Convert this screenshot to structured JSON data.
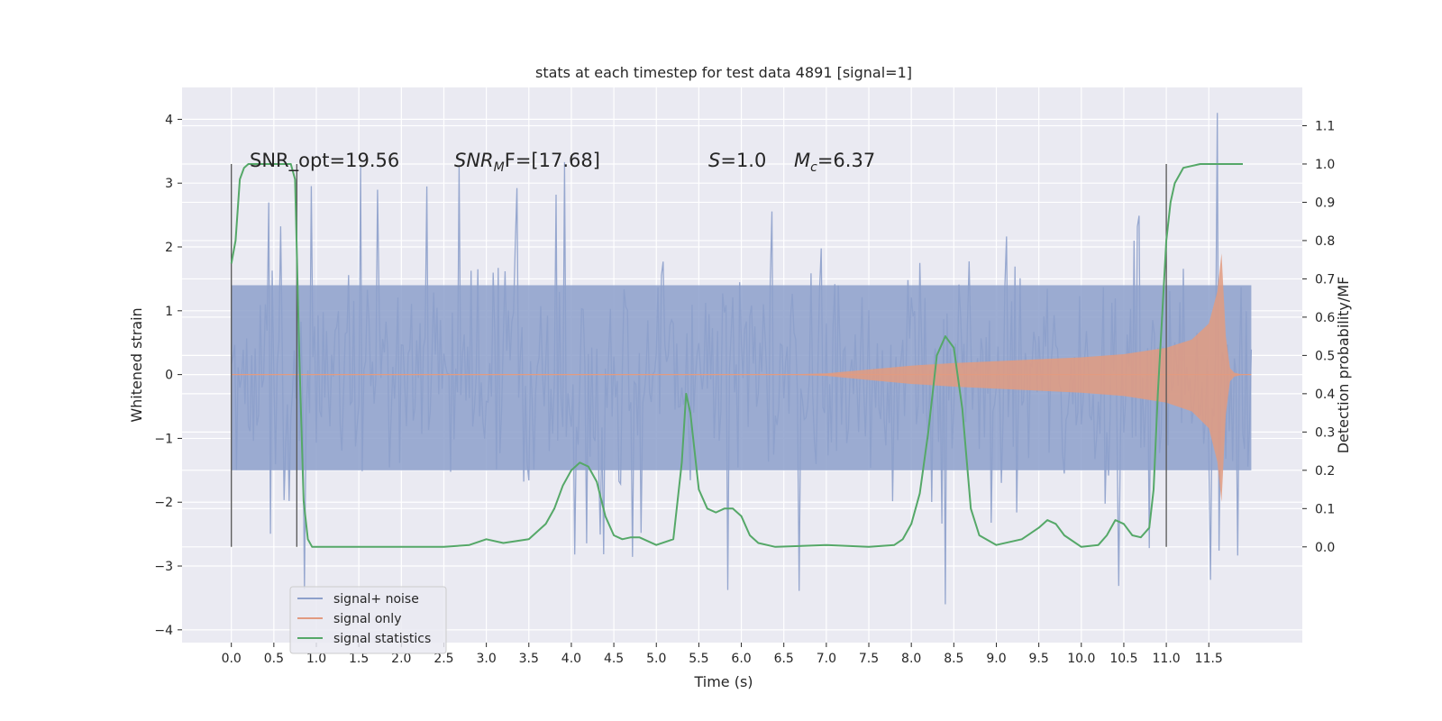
{
  "chart_data": {
    "type": "line",
    "title": "stats at each timestep for test data 4891 [signal=1]",
    "xlabel": "Time (s)",
    "ylabel_left": "Whitened strain",
    "ylabel_right": "Detection probability/MF",
    "xlim": [
      -0.58,
      12.6
    ],
    "ylim_left": [
      -4.2,
      4.5
    ],
    "ylim_right": [
      -0.25,
      1.2
    ],
    "x_ticks": [
      "0.0",
      "0.5",
      "1.0",
      "1.5",
      "2.0",
      "2.5",
      "3.0",
      "3.5",
      "4.0",
      "4.5",
      "5.0",
      "5.5",
      "6.0",
      "6.5",
      "7.0",
      "7.5",
      "8.0",
      "8.5",
      "9.0",
      "9.5",
      "10.0",
      "10.5",
      "11.0",
      "11.5"
    ],
    "y_left_ticks": [
      "−4",
      "−3",
      "−2",
      "−1",
      "0",
      "1",
      "2",
      "3",
      "4"
    ],
    "y_right_ticks": [
      "0.0",
      "0.1",
      "0.2",
      "0.3",
      "0.4",
      "0.5",
      "0.6",
      "0.7",
      "0.8",
      "0.9",
      "1.0",
      "1.1"
    ],
    "grid": true,
    "legend_position": "lower-left",
    "annotations": {
      "snr_opt": "SNR_opt=19.56",
      "snr_mf_symbol": "SNR",
      "snr_mf_sub": "M",
      "snr_mf_rest": "F=[17.68]",
      "s_symbol": "S",
      "s_rest": "=1.0",
      "mc_symbol": "M",
      "mc_sub": "c",
      "mc_rest": "=6.37"
    },
    "detection_markers_x": [
      0.0,
      0.77,
      11.0
    ],
    "series": [
      {
        "name": "signal+ noise",
        "color": "#8da0cb",
        "axis": "left",
        "sample_rate_hz": 50,
        "duration_s": 12.0,
        "core_band": [
          -1.5,
          1.4
        ],
        "peak_high": 4.1,
        "peak_low": -3.7
      },
      {
        "name": "signal only",
        "color": "#e29b80",
        "axis": "left",
        "envelope_x": [
          0.0,
          6.5,
          7.0,
          7.5,
          8.0,
          8.5,
          9.0,
          9.5,
          10.0,
          10.5,
          11.0,
          11.3,
          11.5,
          11.6,
          11.65,
          11.7,
          11.75,
          11.8,
          11.9,
          12.0
        ],
        "envelope_y": [
          0.0,
          0.0,
          0.02,
          0.08,
          0.14,
          0.18,
          0.21,
          0.24,
          0.27,
          0.32,
          0.42,
          0.55,
          0.8,
          1.3,
          1.9,
          0.6,
          0.1,
          0.03,
          0.0,
          0.0
        ]
      },
      {
        "name": "signal statistics",
        "color": "#55a868",
        "axis": "right",
        "x": [
          0.0,
          0.05,
          0.1,
          0.15,
          0.2,
          0.3,
          0.5,
          0.7,
          0.75,
          0.8,
          0.85,
          0.9,
          0.95,
          1.0,
          1.5,
          1.7,
          2.0,
          2.5,
          2.8,
          3.0,
          3.2,
          3.5,
          3.7,
          3.8,
          3.9,
          4.0,
          4.1,
          4.2,
          4.3,
          4.4,
          4.5,
          4.6,
          4.7,
          4.8,
          5.0,
          5.2,
          5.3,
          5.35,
          5.4,
          5.45,
          5.5,
          5.6,
          5.7,
          5.8,
          5.9,
          6.0,
          6.1,
          6.2,
          6.4,
          7.0,
          7.5,
          7.8,
          7.9,
          8.0,
          8.1,
          8.2,
          8.3,
          8.4,
          8.5,
          8.6,
          8.7,
          8.8,
          9.0,
          9.3,
          9.5,
          9.6,
          9.7,
          9.8,
          10.0,
          10.2,
          10.3,
          10.4,
          10.5,
          10.6,
          10.7,
          10.8,
          10.85,
          10.9,
          10.95,
          11.0,
          11.05,
          11.1,
          11.2,
          11.4,
          11.5,
          11.6,
          11.7,
          11.8,
          11.9
        ],
        "y": [
          0.74,
          0.8,
          0.96,
          0.99,
          1.0,
          1.0,
          1.0,
          1.0,
          0.96,
          0.5,
          0.12,
          0.02,
          0.0,
          0.0,
          0.0,
          0.0,
          0.0,
          0.0,
          0.005,
          0.02,
          0.01,
          0.02,
          0.06,
          0.1,
          0.16,
          0.2,
          0.22,
          0.21,
          0.17,
          0.08,
          0.03,
          0.02,
          0.025,
          0.025,
          0.005,
          0.02,
          0.22,
          0.4,
          0.35,
          0.25,
          0.15,
          0.1,
          0.09,
          0.1,
          0.1,
          0.08,
          0.03,
          0.01,
          0.0,
          0.005,
          0.0,
          0.005,
          0.02,
          0.06,
          0.14,
          0.3,
          0.5,
          0.55,
          0.52,
          0.36,
          0.1,
          0.03,
          0.005,
          0.02,
          0.05,
          0.07,
          0.06,
          0.03,
          0.0,
          0.005,
          0.03,
          0.07,
          0.06,
          0.03,
          0.025,
          0.05,
          0.15,
          0.4,
          0.6,
          0.8,
          0.9,
          0.95,
          0.99,
          1.0,
          1.0,
          1.0,
          1.0,
          1.0,
          1.0
        ]
      }
    ]
  }
}
